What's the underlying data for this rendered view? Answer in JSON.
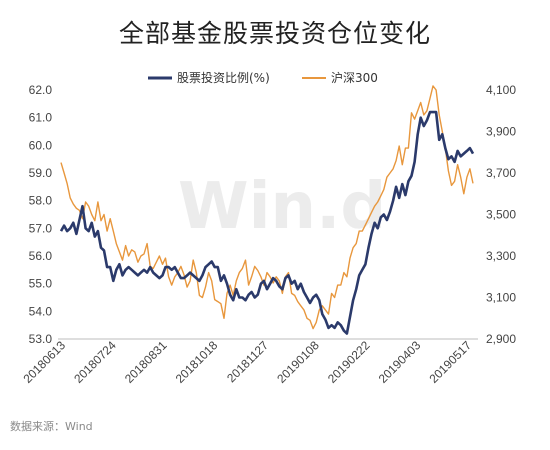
{
  "title": "全部基金股票投资仓位变化",
  "source": "数据来源：Wind",
  "watermark": "Win.d",
  "chart_data": {
    "type": "line",
    "x_ticks": [
      "20180613",
      "20180724",
      "20180831",
      "20181018",
      "20181127",
      "20190108",
      "20190222",
      "20190403",
      "20190517"
    ],
    "y_left": {
      "ticks": [
        "62.0",
        "61.0",
        "60.0",
        "59.0",
        "58.0",
        "57.0",
        "56.0",
        "55.0",
        "54.0",
        "53.0"
      ],
      "range": [
        53,
        62
      ]
    },
    "y_right": {
      "ticks": [
        "4,100",
        "3,900",
        "3,700",
        "3,500",
        "3,300",
        "3,100",
        "2,900"
      ],
      "range": [
        2900,
        4100
      ]
    },
    "legend_placement": "top",
    "series": [
      {
        "name": "股票投资比例(%)",
        "axis": "left",
        "color": "#2b3a6b",
        "values": [
          56.9,
          57.1,
          56.9,
          57.0,
          57.2,
          56.8,
          57.3,
          57.8,
          57.0,
          56.9,
          57.2,
          56.7,
          56.9,
          56.3,
          56.2,
          55.6,
          55.6,
          55.1,
          55.5,
          55.7,
          55.3,
          55.5,
          55.6,
          55.5,
          55.4,
          55.3,
          55.4,
          55.5,
          55.4,
          55.6,
          55.4,
          55.3,
          55.2,
          55.3,
          55.6,
          55.6,
          55.5,
          55.6,
          55.4,
          55.2,
          55.2,
          55.3,
          55.4,
          55.3,
          55.2,
          55.1,
          55.3,
          55.6,
          55.7,
          55.8,
          55.6,
          55.6,
          55.1,
          55.3,
          55.0,
          54.6,
          54.4,
          54.8,
          54.5,
          54.5,
          54.4,
          54.6,
          54.7,
          54.5,
          54.6,
          55.0,
          55.1,
          54.8,
          55.0,
          55.2,
          55.1,
          54.9,
          54.8,
          55.2,
          55.3,
          55.0,
          55.1,
          54.8,
          55.0,
          54.7,
          54.5,
          54.3,
          54.5,
          54.6,
          54.4,
          53.9,
          53.7,
          53.4,
          53.5,
          53.4,
          53.6,
          53.5,
          53.3,
          53.2,
          53.8,
          54.4,
          54.8,
          55.3,
          55.5,
          55.7,
          56.3,
          56.8,
          57.2,
          57.0,
          57.4,
          57.5,
          57.3,
          57.6,
          58.0,
          58.5,
          58.1,
          58.6,
          58.2,
          58.7,
          58.9,
          59.4,
          60.4,
          61.0,
          60.7,
          60.9,
          61.2,
          61.2,
          61.2,
          60.2,
          60.4,
          59.9,
          59.5,
          59.6,
          59.4,
          59.8,
          59.6,
          59.7,
          59.8,
          59.9,
          59.7
        ]
      },
      {
        "name": "沪深300",
        "axis": "right",
        "color": "#e8973d",
        "values": [
          3750,
          3700,
          3650,
          3580,
          3550,
          3530,
          3520,
          3480,
          3560,
          3540,
          3500,
          3470,
          3560,
          3470,
          3500,
          3420,
          3480,
          3420,
          3360,
          3320,
          3280,
          3350,
          3300,
          3330,
          3320,
          3270,
          3300,
          3310,
          3360,
          3250,
          3240,
          3270,
          3300,
          3260,
          3290,
          3200,
          3160,
          3200,
          3220,
          3250,
          3210,
          3150,
          3180,
          3280,
          3220,
          3110,
          3100,
          3150,
          3220,
          3180,
          3090,
          3080,
          3070,
          3000,
          3120,
          3160,
          3110,
          3180,
          3220,
          3240,
          3280,
          3160,
          3200,
          3250,
          3230,
          3200,
          3160,
          3220,
          3200,
          3170,
          3200,
          3180,
          3120,
          3200,
          3220,
          3120,
          3110,
          3080,
          3060,
          3040,
          3000,
          2990,
          2950,
          2980,
          3040,
          3060,
          3040,
          3020,
          3120,
          3100,
          3160,
          3160,
          3220,
          3200,
          3290,
          3340,
          3360,
          3420,
          3420,
          3450,
          3480,
          3510,
          3540,
          3560,
          3590,
          3620,
          3680,
          3700,
          3720,
          3760,
          3830,
          3740,
          3820,
          3820,
          3990,
          3960,
          4000,
          4040,
          3980,
          4000,
          4060,
          4120,
          4100,
          3980,
          3900,
          3820,
          3710,
          3640,
          3660,
          3740,
          3680,
          3600,
          3680,
          3720,
          3650
        ]
      }
    ]
  }
}
